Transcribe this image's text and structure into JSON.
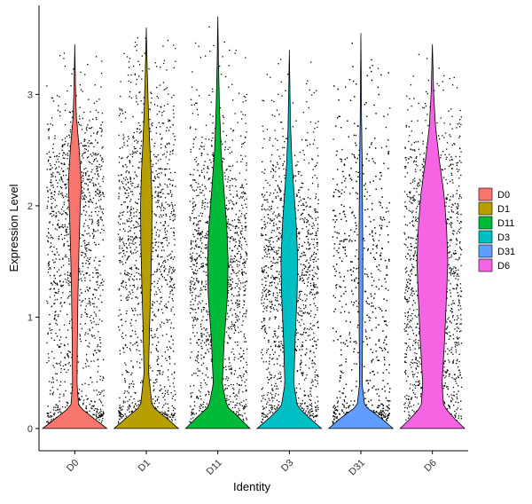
{
  "chart_data": {
    "type": "violin",
    "title": "",
    "xlabel": "Identity",
    "ylabel": "Expression Level",
    "ylim": [
      -0.2,
      3.8
    ],
    "yticks": [
      0,
      1,
      2,
      3
    ],
    "grid": false,
    "legend_placement": "right",
    "categories": [
      "D0",
      "D1",
      "D11",
      "D3",
      "D31",
      "D6"
    ],
    "colors": [
      "#F8766D",
      "#B79F00",
      "#00BA38",
      "#00BFC4",
      "#619CFF",
      "#F564E3"
    ],
    "series": [
      {
        "name": "D0",
        "color": "#F8766D",
        "max": 3.45,
        "zero_fraction": 0.55,
        "density": [
          [
            0.0,
            1.0
          ],
          [
            0.1,
            0.55
          ],
          [
            0.2,
            0.12
          ],
          [
            0.4,
            0.07
          ],
          [
            0.8,
            0.08
          ],
          [
            1.2,
            0.1
          ],
          [
            1.6,
            0.13
          ],
          [
            1.9,
            0.16
          ],
          [
            2.2,
            0.2
          ],
          [
            2.5,
            0.14
          ],
          [
            2.8,
            0.05
          ],
          [
            3.1,
            0.02
          ],
          [
            3.45,
            0.0
          ]
        ]
      },
      {
        "name": "D1",
        "color": "#B79F00",
        "max": 3.6,
        "zero_fraction": 0.35,
        "density": [
          [
            0.0,
            1.0
          ],
          [
            0.1,
            0.6
          ],
          [
            0.2,
            0.18
          ],
          [
            0.5,
            0.07
          ],
          [
            0.9,
            0.1
          ],
          [
            1.3,
            0.14
          ],
          [
            1.7,
            0.17
          ],
          [
            2.0,
            0.18
          ],
          [
            2.3,
            0.15
          ],
          [
            2.6,
            0.1
          ],
          [
            2.9,
            0.06
          ],
          [
            3.2,
            0.03
          ],
          [
            3.6,
            0.0
          ]
        ]
      },
      {
        "name": "D11",
        "color": "#00BA38",
        "max": 3.7,
        "zero_fraction": 0.3,
        "density": [
          [
            0.0,
            1.0
          ],
          [
            0.1,
            0.65
          ],
          [
            0.2,
            0.28
          ],
          [
            0.4,
            0.14
          ],
          [
            0.8,
            0.2
          ],
          [
            1.2,
            0.3
          ],
          [
            1.5,
            0.32
          ],
          [
            1.8,
            0.28
          ],
          [
            2.1,
            0.2
          ],
          [
            2.5,
            0.1
          ],
          [
            2.9,
            0.05
          ],
          [
            3.3,
            0.02
          ],
          [
            3.7,
            0.0
          ]
        ]
      },
      {
        "name": "D3",
        "color": "#00BFC4",
        "max": 3.4,
        "zero_fraction": 0.3,
        "density": [
          [
            0.0,
            1.0
          ],
          [
            0.1,
            0.6
          ],
          [
            0.2,
            0.25
          ],
          [
            0.4,
            0.14
          ],
          [
            0.8,
            0.18
          ],
          [
            1.2,
            0.24
          ],
          [
            1.5,
            0.26
          ],
          [
            1.8,
            0.22
          ],
          [
            2.1,
            0.15
          ],
          [
            2.4,
            0.08
          ],
          [
            2.7,
            0.04
          ],
          [
            3.0,
            0.02
          ],
          [
            3.4,
            0.0
          ]
        ]
      },
      {
        "name": "D31",
        "color": "#619CFF",
        "max": 3.55,
        "zero_fraction": 0.3,
        "density": [
          [
            0.0,
            1.0
          ],
          [
            0.1,
            0.6
          ],
          [
            0.2,
            0.12
          ],
          [
            0.4,
            0.04
          ],
          [
            0.8,
            0.05
          ],
          [
            1.2,
            0.06
          ],
          [
            1.6,
            0.06
          ],
          [
            2.0,
            0.05
          ],
          [
            2.4,
            0.04
          ],
          [
            2.8,
            0.02
          ],
          [
            3.2,
            0.01
          ],
          [
            3.55,
            0.0
          ]
        ]
      },
      {
        "name": "D6",
        "color": "#F564E3",
        "max": 3.45,
        "zero_fraction": 0.5,
        "density": [
          [
            0.0,
            1.0
          ],
          [
            0.1,
            0.65
          ],
          [
            0.2,
            0.35
          ],
          [
            0.4,
            0.3
          ],
          [
            0.8,
            0.38
          ],
          [
            1.2,
            0.44
          ],
          [
            1.5,
            0.48
          ],
          [
            1.8,
            0.44
          ],
          [
            2.1,
            0.36
          ],
          [
            2.4,
            0.22
          ],
          [
            2.7,
            0.1
          ],
          [
            3.0,
            0.04
          ],
          [
            3.45,
            0.0
          ]
        ]
      }
    ]
  }
}
